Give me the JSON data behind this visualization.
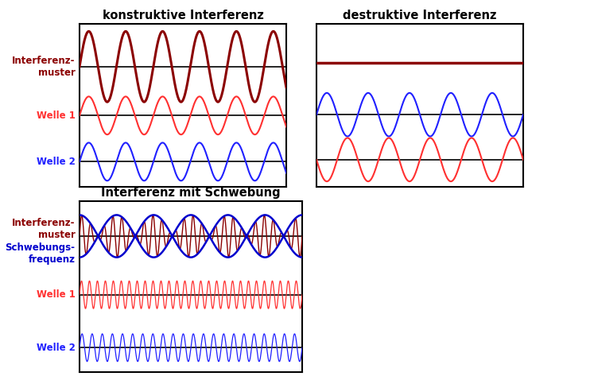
{
  "bg_color": "#ffffff",
  "panel_bg": "#ffffff",
  "panel_border": "black",
  "title_konstruktiv": "konstruktive Interferenz",
  "title_destruktiv": "destruktive Interferenz",
  "title_schwebung": "Interferenz mit Schwebung",
  "label_interferenz": "Interferenz-\nmuster",
  "label_schwebung": "Schwebungs-\nfrequenz",
  "label_welle1": "Welle 1",
  "label_welle2": "Welle 2",
  "color_interferenz": "#8b0000",
  "color_schwebung_envelope": "#0000cd",
  "color_welle1": "#ff3030",
  "color_welle2": "#2020ff",
  "color_axis": "black",
  "lw_thick": 2.2,
  "lw_main": 1.5,
  "lw_envelope": 1.8,
  "font_size_title": 10.5,
  "font_size_label": 8.5
}
